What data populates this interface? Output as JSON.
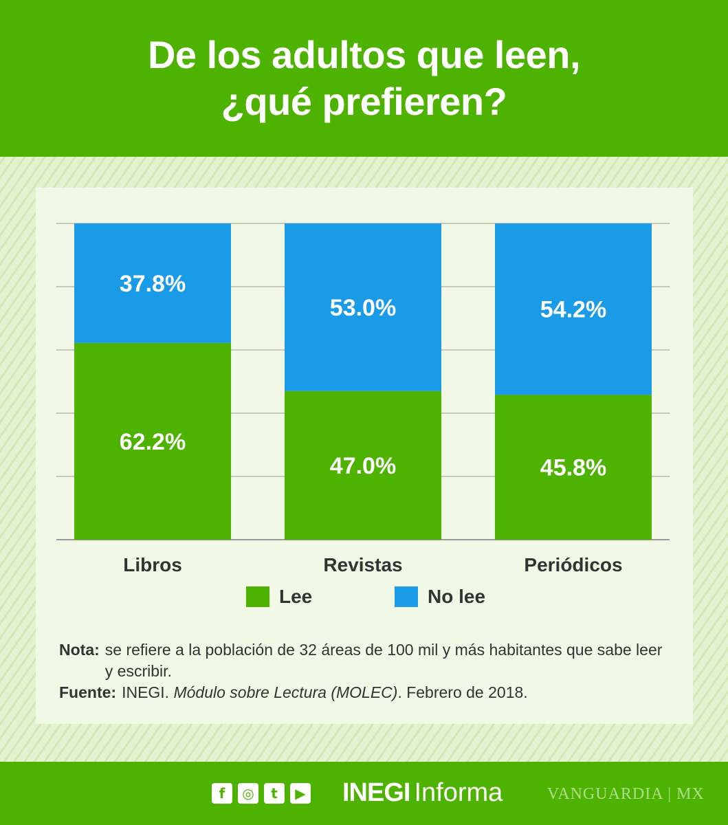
{
  "title": "De los adultos que leen,\n¿qué prefieren?",
  "colors": {
    "green": "#4db300",
    "blue": "#1a9be8",
    "text": "#333333",
    "grid": "#9a9a9a"
  },
  "chart_data": {
    "type": "bar",
    "stacked": true,
    "categories": [
      "Libros",
      "Revistas",
      "Periódicos"
    ],
    "series": [
      {
        "name": "Lee",
        "values": [
          62.2,
          47.0,
          45.8
        ],
        "labels": [
          "62.2%",
          "47.0%",
          "45.8%"
        ],
        "color": "#4db300"
      },
      {
        "name": "No lee",
        "values": [
          37.8,
          53.0,
          54.2
        ],
        "labels": [
          "37.8%",
          "53.0%",
          "54.2%"
        ],
        "color": "#1a9be8"
      }
    ],
    "ylim": [
      0,
      100
    ],
    "yticks": [
      0,
      20,
      40,
      60,
      80,
      100
    ],
    "grid": true,
    "legend": "bottom"
  },
  "notes": {
    "nota_label": "Nota:",
    "nota_text": "se refiere a la población de 32 áreas de 100 mil y más habitantes que sabe leer y escribir.",
    "fuente_label": "Fuente:",
    "fuente_org": "INEGI.",
    "fuente_title": "Módulo sobre Lectura (MOLEC)",
    "fuente_date": ". Febrero de 2018."
  },
  "footer": {
    "social": [
      "f",
      "◎",
      "t",
      "▶"
    ],
    "social_icons": [
      "facebook-icon",
      "instagram-icon",
      "twitter-icon",
      "youtube-icon"
    ],
    "brand_bold": "INEGI",
    "brand_light": "Informa",
    "watermark": "VANGUARDIA",
    "watermark_suffix": "MX"
  }
}
